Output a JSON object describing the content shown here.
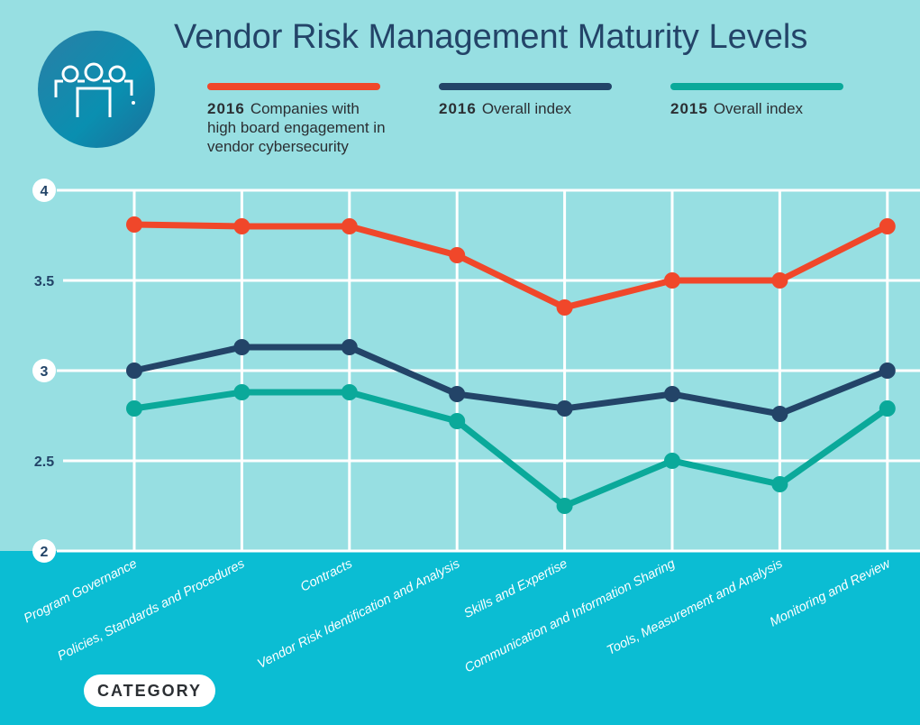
{
  "title": "Vendor Risk Management Maturity Levels",
  "legend": [
    {
      "year": "2016",
      "label": "Companies with high board engagement in vendor cybersecurity",
      "lines": [
        "Companies with",
        "high board engagement in",
        "vendor cybersecurity"
      ],
      "color": "#f0472a"
    },
    {
      "year": "2016",
      "label": "Overall index",
      "lines": [
        "Overall index"
      ],
      "color": "#234468"
    },
    {
      "year": "2015",
      "label": "Overall index",
      "lines": [
        "Overall index"
      ],
      "color": "#0aa99a"
    }
  ],
  "category_button": "CATEGORY",
  "icon": "people-meeting-icon",
  "chart_data": {
    "type": "line",
    "title": "Vendor Risk Management Maturity Levels",
    "xlabel": "CATEGORY",
    "ylabel": "",
    "ylim": [
      2,
      4
    ],
    "yticks": [
      {
        "v": 2,
        "label": "2",
        "circle": true
      },
      {
        "v": 2.5,
        "label": "2.5",
        "circle": false
      },
      {
        "v": 3,
        "label": "3",
        "circle": true
      },
      {
        "v": 3.5,
        "label": "3.5",
        "circle": false
      },
      {
        "v": 4,
        "label": "4",
        "circle": true
      }
    ],
    "grid": true,
    "legend_position": "top",
    "categories": [
      "Program Governance",
      "Policies, Standards and Procedures",
      "Contracts",
      "Vendor Risk Identification and Analysis",
      "Skills and Expertise",
      "Communication and Information Sharing",
      "Tools, Measurement and Analysis",
      "Monitoring and Review"
    ],
    "series": [
      {
        "name": "2016 Companies with high board engagement in vendor cybersecurity",
        "color": "#f0472a",
        "values": [
          3.81,
          3.8,
          3.8,
          3.64,
          3.35,
          3.5,
          3.5,
          3.8
        ]
      },
      {
        "name": "2016 Overall index",
        "color": "#234468",
        "values": [
          3.0,
          3.13,
          3.13,
          2.87,
          2.79,
          2.87,
          2.76,
          3.0
        ]
      },
      {
        "name": "2015 Overall index",
        "color": "#0aa99a",
        "values": [
          2.79,
          2.88,
          2.88,
          2.72,
          2.25,
          2.5,
          2.37,
          2.79
        ]
      }
    ]
  }
}
